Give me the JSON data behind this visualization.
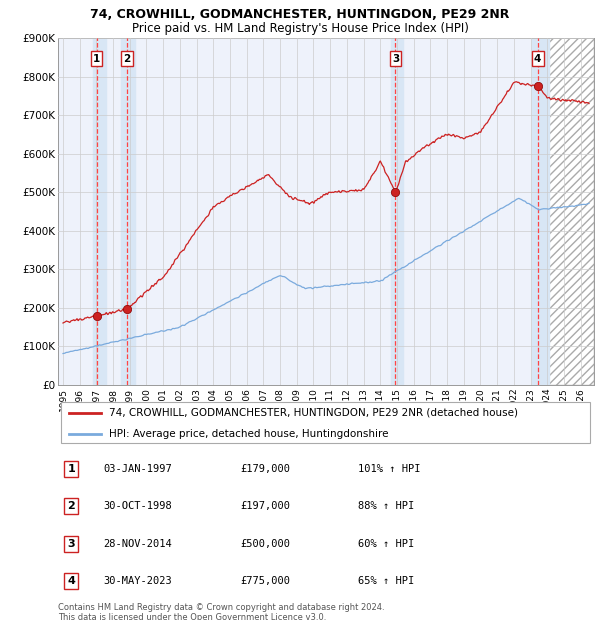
{
  "title1": "74, CROWHILL, GODMANCHESTER, HUNTINGDON, PE29 2NR",
  "title2": "Price paid vs. HM Land Registry's House Price Index (HPI)",
  "ylim": [
    0,
    900000
  ],
  "yticks": [
    0,
    100000,
    200000,
    300000,
    400000,
    500000,
    600000,
    700000,
    800000,
    900000
  ],
  "ytick_labels": [
    "£0",
    "£100K",
    "£200K",
    "£300K",
    "£400K",
    "£500K",
    "£600K",
    "£700K",
    "£800K",
    "£900K"
  ],
  "xlim_start": 1994.7,
  "xlim_end": 2026.8,
  "xticks": [
    1995,
    1996,
    1997,
    1998,
    1999,
    2000,
    2001,
    2002,
    2003,
    2004,
    2005,
    2006,
    2007,
    2008,
    2009,
    2010,
    2011,
    2012,
    2013,
    2014,
    2015,
    2016,
    2017,
    2018,
    2019,
    2020,
    2021,
    2022,
    2023,
    2024,
    2025,
    2026
  ],
  "sale_dates": [
    1997.01,
    1998.83,
    2014.91,
    2023.42
  ],
  "sale_prices": [
    179000,
    197000,
    500000,
    775000
  ],
  "sale_labels": [
    "1",
    "2",
    "3",
    "4"
  ],
  "sale_label_info": [
    {
      "num": "1",
      "date": "03-JAN-1997",
      "price": "£179,000",
      "hpi": "101% ↑ HPI"
    },
    {
      "num": "2",
      "date": "30-OCT-1998",
      "price": "£197,000",
      "hpi": "88% ↑ HPI"
    },
    {
      "num": "3",
      "date": "28-NOV-2014",
      "price": "£500,000",
      "hpi": "60% ↑ HPI"
    },
    {
      "num": "4",
      "date": "30-MAY-2023",
      "price": "£775,000",
      "hpi": "65% ↑ HPI"
    }
  ],
  "hpi_color": "#7aaadd",
  "price_color": "#cc2222",
  "bg_color": "#ffffff",
  "plot_bg_color": "#eef2fb",
  "grid_color": "#cccccc",
  "vline_color": "#ff4444",
  "vband_color": "#d8e6f5",
  "legend_label_price": "74, CROWHILL, GODMANCHESTER, HUNTINGDON, PE29 2NR (detached house)",
  "legend_label_hpi": "HPI: Average price, detached house, Huntingdonshire",
  "footer1": "Contains HM Land Registry data © Crown copyright and database right 2024.",
  "footer2": "This data is licensed under the Open Government Licence v3.0."
}
